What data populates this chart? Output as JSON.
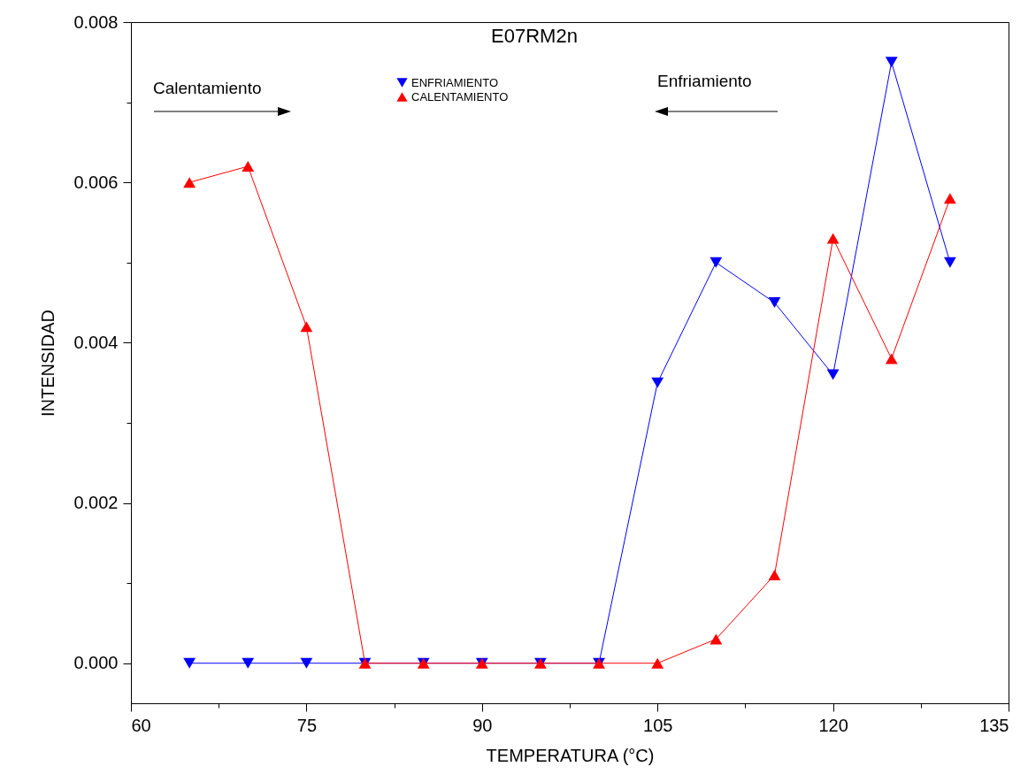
{
  "chart_data": {
    "type": "line",
    "title": "E07RM2n",
    "xlabel": "TEMPERATURA (°C)",
    "ylabel": "INTENSIDAD",
    "x": [
      65,
      70,
      75,
      80,
      85,
      90,
      95,
      100,
      105,
      110,
      115,
      120,
      125,
      130
    ],
    "series": [
      {
        "name": "ENFRIAMIENTO",
        "color": "#0000ff",
        "marker": "triangle-down",
        "values": [
          0,
          0,
          0,
          0,
          0,
          0,
          0,
          0,
          0.0035,
          0.005,
          0.0045,
          0.0036,
          0.0075,
          0.005
        ]
      },
      {
        "name": "CALENTAMIENTO",
        "color": "#ff0000",
        "marker": "triangle",
        "values": [
          0.006,
          0.0062,
          0.0042,
          0,
          0,
          0,
          0,
          0,
          0,
          0.0003,
          0.0011,
          0.0053,
          0.0038,
          0.0058
        ]
      }
    ],
    "xlim": [
      60,
      135
    ],
    "xticks": [
      60,
      {
        "value": 67.5,
        "label": null
      },
      75,
      {
        "value": 82.5,
        "label": null
      },
      90,
      {
        "value": 97.5,
        "label": null
      },
      105,
      {
        "value": 112.5,
        "label": null
      },
      120,
      {
        "value": 127.5,
        "label": null
      },
      135
    ],
    "ylim": [
      -0.0005,
      0.008
    ],
    "yticks": [
      {
        "value": 0,
        "label": "0.000"
      },
      {
        "value": 0.001,
        "label": null
      },
      {
        "value": 0.002,
        "label": "0.002"
      },
      {
        "value": 0.003,
        "label": null
      },
      {
        "value": 0.004,
        "label": "0.004"
      },
      {
        "value": 0.005,
        "label": null
      },
      {
        "value": 0.006,
        "label": "0.006"
      },
      {
        "value": 0.007,
        "label": null
      },
      {
        "value": 0.008,
        "label": "0.008"
      }
    ],
    "annotations": [
      "Calentamiento",
      "Enfriamiento"
    ],
    "grid": false,
    "legend": "top",
    "line_style": "solid"
  }
}
